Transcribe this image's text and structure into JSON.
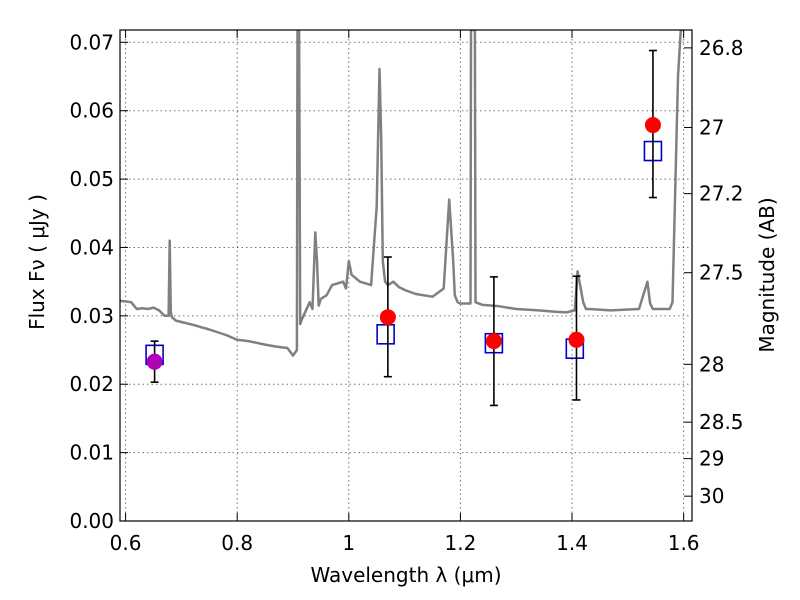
{
  "chart_data": {
    "type": "scatter",
    "xlabel": "Wavelength  λ (μm)",
    "ylabel": "Flux  Fν  ( μJy )",
    "ylabel_right": "Magnitude (AB)",
    "xlim": [
      0.59,
      1.615
    ],
    "ylim": [
      0.0,
      0.0718
    ],
    "x_ticks": [
      {
        "value": 0.6,
        "label": "0.6"
      },
      {
        "value": 0.8,
        "label": "0.8"
      },
      {
        "value": 1.0,
        "label": "1"
      },
      {
        "value": 1.2,
        "label": "1.2"
      },
      {
        "value": 1.4,
        "label": "1.4"
      },
      {
        "value": 1.6,
        "label": "1.6"
      }
    ],
    "y_ticks": [
      {
        "value": 0.0,
        "label": "0.00"
      },
      {
        "value": 0.01,
        "label": "0.01"
      },
      {
        "value": 0.02,
        "label": "0.02"
      },
      {
        "value": 0.03,
        "label": "0.03"
      },
      {
        "value": 0.04,
        "label": "0.04"
      },
      {
        "value": 0.05,
        "label": "0.05"
      },
      {
        "value": 0.06,
        "label": "0.06"
      },
      {
        "value": 0.07,
        "label": "0.07"
      }
    ],
    "right_ticks": [
      {
        "mag": 26.8,
        "label": "26.8"
      },
      {
        "mag": 27.0,
        "label": "27"
      },
      {
        "mag": 27.2,
        "label": "27.2"
      },
      {
        "mag": 27.5,
        "label": "27.5"
      },
      {
        "mag": 28.0,
        "label": "28"
      },
      {
        "mag": 28.5,
        "label": "28.5"
      },
      {
        "mag": 29.0,
        "label": "29"
      },
      {
        "mag": 30.0,
        "label": "30"
      }
    ],
    "grid": true,
    "series": [
      {
        "kind": "line",
        "color": "#808080",
        "x": [
          0.59,
          0.61,
          0.62,
          0.63,
          0.64,
          0.65,
          0.66,
          0.67,
          0.677,
          0.679,
          0.681,
          0.683,
          0.69,
          0.7,
          0.72,
          0.75,
          0.78,
          0.8,
          0.82,
          0.85,
          0.87,
          0.89,
          0.9,
          0.907,
          0.908,
          0.911,
          0.913,
          0.916,
          0.93,
          0.935,
          0.94,
          0.943,
          0.946,
          0.95,
          0.96,
          0.97,
          0.99,
          0.995,
          1.0,
          1.005,
          1.02,
          1.04,
          1.05,
          1.055,
          1.058,
          1.061,
          1.065,
          1.07,
          1.08,
          1.09,
          1.1,
          1.12,
          1.15,
          1.17,
          1.18,
          1.187,
          1.19,
          1.195,
          1.2,
          1.21,
          1.218,
          1.219,
          1.222,
          1.226,
          1.227,
          1.24,
          1.27,
          1.3,
          1.34,
          1.37,
          1.39,
          1.405,
          1.41,
          1.42,
          1.425,
          1.43,
          1.47,
          1.52,
          1.535,
          1.54,
          1.545,
          1.55,
          1.575,
          1.58,
          1.59,
          1.595,
          1.6
        ],
        "y": [
          0.0322,
          0.032,
          0.031,
          0.0311,
          0.031,
          0.0312,
          0.0308,
          0.03,
          0.03,
          0.041,
          0.0305,
          0.0298,
          0.0293,
          0.0291,
          0.0287,
          0.028,
          0.0272,
          0.0265,
          0.0263,
          0.0258,
          0.0255,
          0.0253,
          0.0242,
          0.025,
          0.0718,
          0.0718,
          0.0288,
          0.0295,
          0.032,
          0.031,
          0.0422,
          0.038,
          0.0315,
          0.0325,
          0.033,
          0.0345,
          0.035,
          0.034,
          0.038,
          0.036,
          0.035,
          0.0345,
          0.046,
          0.0661,
          0.056,
          0.038,
          0.035,
          0.0345,
          0.035,
          0.0342,
          0.0338,
          0.0332,
          0.0328,
          0.034,
          0.047,
          0.038,
          0.033,
          0.032,
          0.0318,
          0.0318,
          0.0318,
          0.0718,
          0.0718,
          0.0718,
          0.032,
          0.0316,
          0.0314,
          0.031,
          0.0308,
          0.0306,
          0.0305,
          0.0308,
          0.0365,
          0.032,
          0.031,
          0.031,
          0.0308,
          0.031,
          0.035,
          0.0318,
          0.031,
          0.031,
          0.031,
          0.032,
          0.065,
          0.0718,
          0.0718
        ]
      },
      {
        "kind": "boxes",
        "color": "#0000cc",
        "x": [
          0.652,
          1.066,
          1.26,
          1.405,
          1.545
        ],
        "y": [
          0.0243,
          0.0273,
          0.026,
          0.0252,
          0.0541
        ]
      },
      {
        "kind": "points",
        "color": "#ff0000",
        "x": [
          1.07,
          1.26,
          1.408,
          1.545
        ],
        "y": [
          0.0298,
          0.0263,
          0.0265,
          0.0579
        ],
        "yerr_low": [
          0.0211,
          0.0169,
          0.0177,
          0.0473
        ],
        "yerr_high": [
          0.0386,
          0.0357,
          0.0358,
          0.0688
        ]
      },
      {
        "kind": "points",
        "color": "#b000b8",
        "x": [
          0.652
        ],
        "y": [
          0.0233
        ],
        "yerr_low": [
          0.0203
        ],
        "yerr_high": [
          0.0263
        ]
      }
    ]
  }
}
